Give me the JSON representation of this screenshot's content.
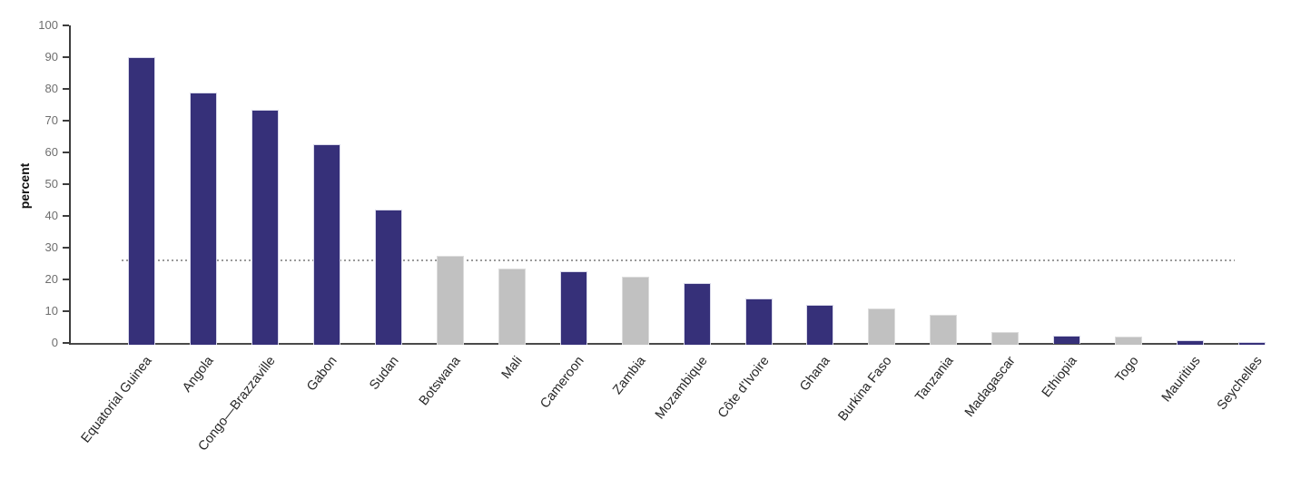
{
  "chart_data": {
    "type": "bar",
    "title": "",
    "xlabel": "",
    "ylabel": "percent",
    "ylim": [
      0,
      100
    ],
    "ytick_step": 10,
    "yticks": [
      "0",
      "10",
      "20",
      "30",
      "40",
      "50",
      "60",
      "70",
      "80",
      "90",
      "100"
    ],
    "grid": false,
    "legend_position": "none",
    "categories": [
      "Equatorial Guinea",
      "Angola",
      "Congo—Brazzaville",
      "Gabon",
      "Sudan",
      "Botswana",
      "Mali",
      "Cameroon",
      "Zambia",
      "Mozambique",
      "Côte d’Ivoire",
      "Ghana",
      "Burkina Faso",
      "Tanzania",
      "Madagascar",
      "Ethiopia",
      "Togo",
      "Mauritius",
      "Seychelles"
    ],
    "values": [
      90,
      79,
      73.5,
      62.5,
      42,
      27.5,
      23.5,
      22.5,
      21,
      19,
      14,
      12,
      11,
      9,
      3.5,
      2.2,
      2,
      1,
      0.4
    ],
    "bar_colors": [
      "navy",
      "navy",
      "navy",
      "navy",
      "navy",
      "gray",
      "gray",
      "navy",
      "gray",
      "navy",
      "navy",
      "navy",
      "gray",
      "gray",
      "gray",
      "navy",
      "gray",
      "navy",
      "navy"
    ],
    "palette": {
      "navy": "#363079",
      "gray": "#c1c1c1"
    },
    "reference_line": {
      "value": 26,
      "style": "dotted",
      "color": "#9a9a9a"
    },
    "axis_color": "#3d3d3d",
    "tick_label_color": "#6e6e6e",
    "category_label_color": "#262626"
  }
}
